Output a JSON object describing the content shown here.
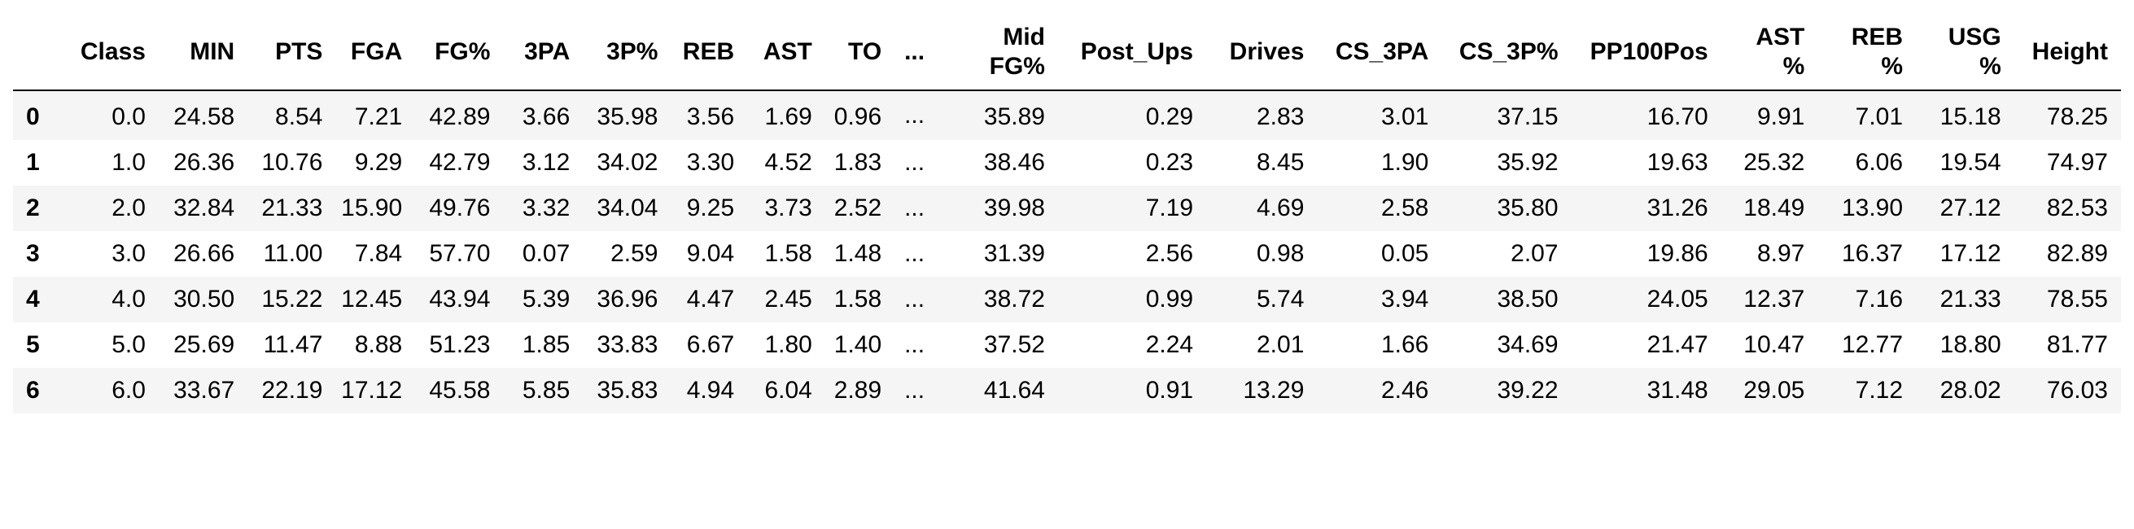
{
  "table": {
    "index_header": "",
    "columns": [
      [
        "Class"
      ],
      [
        "MIN"
      ],
      [
        "PTS"
      ],
      [
        "FGA"
      ],
      [
        "FG%"
      ],
      [
        "3PA"
      ],
      [
        "3P%"
      ],
      [
        "REB"
      ],
      [
        "AST"
      ],
      [
        "TO"
      ],
      [
        "..."
      ],
      [
        "Mid",
        "FG%"
      ],
      [
        "Post_Ups"
      ],
      [
        "Drives"
      ],
      [
        "CS_3PA"
      ],
      [
        "CS_3P%"
      ],
      [
        "PP100Pos"
      ],
      [
        "AST",
        "%"
      ],
      [
        "REB",
        "%"
      ],
      [
        "USG",
        "%"
      ],
      [
        "Height"
      ]
    ],
    "rows": [
      {
        "index": "0",
        "cells": [
          "0.0",
          "24.58",
          "8.54",
          "7.21",
          "42.89",
          "3.66",
          "35.98",
          "3.56",
          "1.69",
          "0.96",
          "...",
          "35.89",
          "0.29",
          "2.83",
          "3.01",
          "37.15",
          "16.70",
          "9.91",
          "7.01",
          "15.18",
          "78.25"
        ]
      },
      {
        "index": "1",
        "cells": [
          "1.0",
          "26.36",
          "10.76",
          "9.29",
          "42.79",
          "3.12",
          "34.02",
          "3.30",
          "4.52",
          "1.83",
          "...",
          "38.46",
          "0.23",
          "8.45",
          "1.90",
          "35.92",
          "19.63",
          "25.32",
          "6.06",
          "19.54",
          "74.97"
        ]
      },
      {
        "index": "2",
        "cells": [
          "2.0",
          "32.84",
          "21.33",
          "15.90",
          "49.76",
          "3.32",
          "34.04",
          "9.25",
          "3.73",
          "2.52",
          "...",
          "39.98",
          "7.19",
          "4.69",
          "2.58",
          "35.80",
          "31.26",
          "18.49",
          "13.90",
          "27.12",
          "82.53"
        ]
      },
      {
        "index": "3",
        "cells": [
          "3.0",
          "26.66",
          "11.00",
          "7.84",
          "57.70",
          "0.07",
          "2.59",
          "9.04",
          "1.58",
          "1.48",
          "...",
          "31.39",
          "2.56",
          "0.98",
          "0.05",
          "2.07",
          "19.86",
          "8.97",
          "16.37",
          "17.12",
          "82.89"
        ]
      },
      {
        "index": "4",
        "cells": [
          "4.0",
          "30.50",
          "15.22",
          "12.45",
          "43.94",
          "5.39",
          "36.96",
          "4.47",
          "2.45",
          "1.58",
          "...",
          "38.72",
          "0.99",
          "5.74",
          "3.94",
          "38.50",
          "24.05",
          "12.37",
          "7.16",
          "21.33",
          "78.55"
        ]
      },
      {
        "index": "5",
        "cells": [
          "5.0",
          "25.69",
          "11.47",
          "8.88",
          "51.23",
          "1.85",
          "33.83",
          "6.67",
          "1.80",
          "1.40",
          "...",
          "37.52",
          "2.24",
          "2.01",
          "1.66",
          "34.69",
          "21.47",
          "10.47",
          "12.77",
          "18.80",
          "81.77"
        ]
      },
      {
        "index": "6",
        "cells": [
          "6.0",
          "33.67",
          "22.19",
          "17.12",
          "45.58",
          "5.85",
          "35.83",
          "4.94",
          "6.04",
          "2.89",
          "...",
          "41.64",
          "0.91",
          "13.29",
          "2.46",
          "39.22",
          "31.48",
          "29.05",
          "7.12",
          "28.02",
          "76.03"
        ]
      }
    ]
  }
}
